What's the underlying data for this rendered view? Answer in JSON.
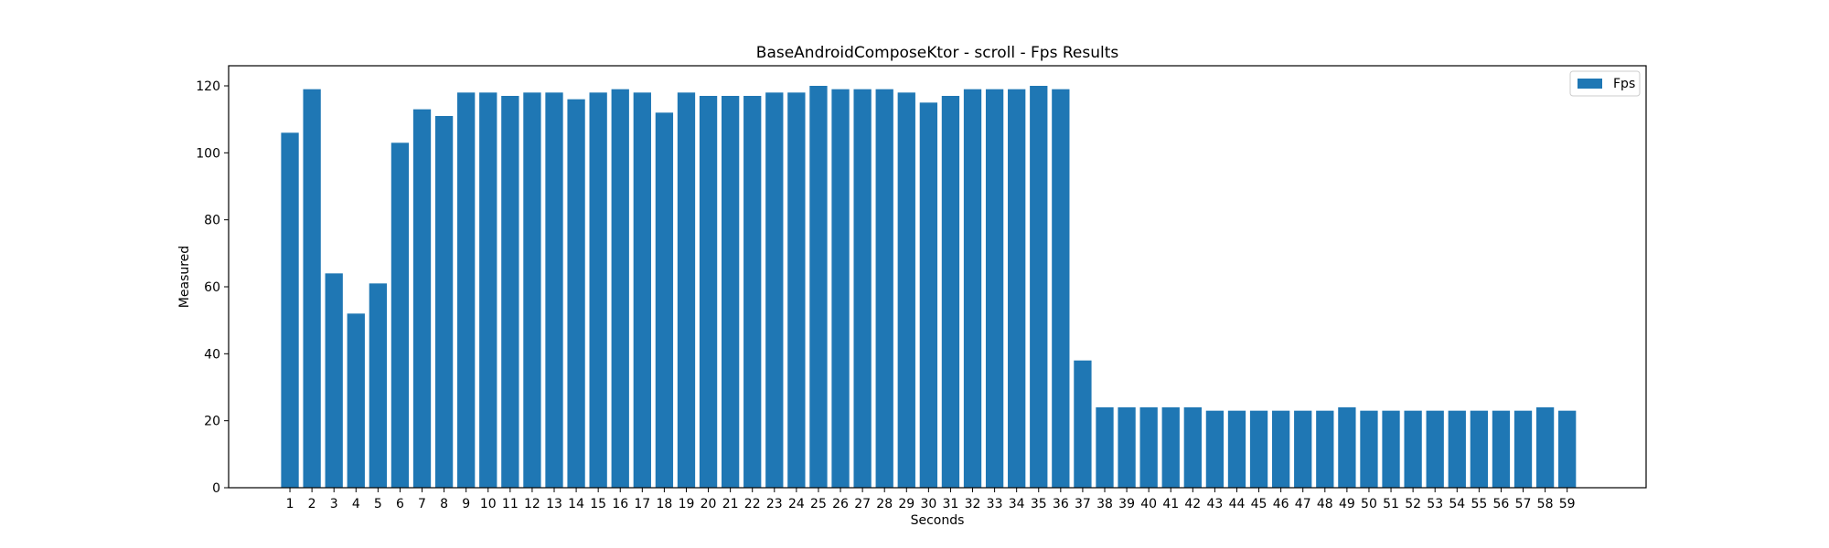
{
  "chart_data": {
    "type": "bar",
    "title": "BaseAndroidComposeKtor - scroll - Fps Results",
    "xlabel": "Seconds",
    "ylabel": "Measured",
    "ylim": [
      0,
      126
    ],
    "yticks": [
      0,
      20,
      40,
      60,
      80,
      100,
      120
    ],
    "grid": false,
    "legend_position": "top-right",
    "bar_color": "#1f77b4",
    "categories": [
      "1",
      "2",
      "3",
      "4",
      "5",
      "6",
      "7",
      "8",
      "9",
      "10",
      "11",
      "12",
      "13",
      "14",
      "15",
      "16",
      "17",
      "18",
      "19",
      "20",
      "21",
      "22",
      "23",
      "24",
      "25",
      "26",
      "27",
      "28",
      "29",
      "30",
      "31",
      "32",
      "33",
      "34",
      "35",
      "36",
      "37",
      "38",
      "39",
      "40",
      "41",
      "42",
      "43",
      "44",
      "45",
      "46",
      "47",
      "48",
      "49",
      "50",
      "51",
      "52",
      "53",
      "54",
      "55",
      "56",
      "57",
      "58",
      "59"
    ],
    "series": [
      {
        "name": "Fps",
        "values": [
          106,
          119,
          64,
          52,
          61,
          103,
          113,
          111,
          118,
          118,
          117,
          118,
          118,
          116,
          118,
          119,
          118,
          112,
          118,
          117,
          117,
          117,
          118,
          118,
          120,
          119,
          119,
          119,
          118,
          115,
          117,
          119,
          119,
          119,
          120,
          119,
          38,
          24,
          24,
          24,
          24,
          24,
          23,
          23,
          23,
          23,
          23,
          23,
          24,
          23,
          23,
          23,
          23,
          23,
          23,
          23,
          23,
          24,
          23
        ]
      }
    ]
  }
}
